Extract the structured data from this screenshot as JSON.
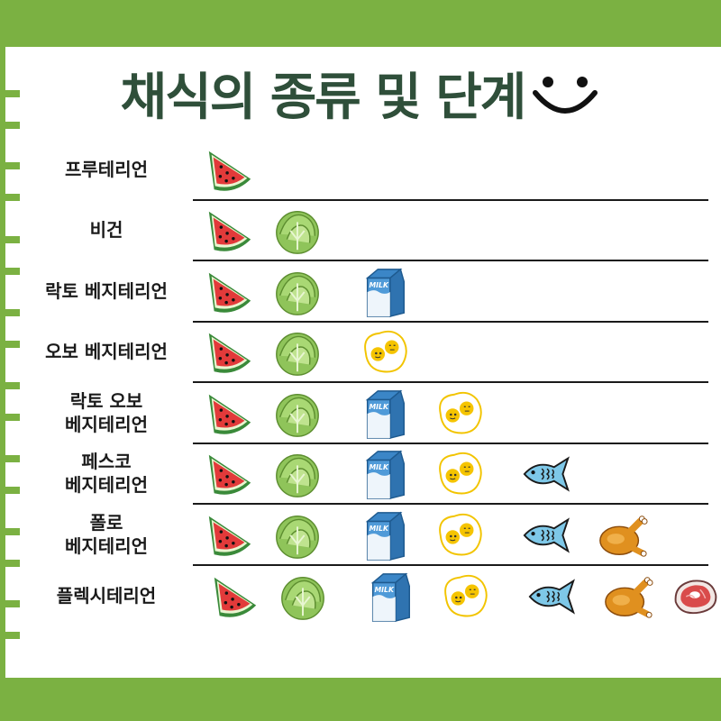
{
  "title": "채식의 종류 및 단계",
  "icons": {
    "watermelon": "watermelon-icon",
    "cabbage": "cabbage-icon",
    "milk": "milk-carton-icon",
    "egg": "fried-egg-icon",
    "fish": "fish-icon",
    "chicken": "roast-chicken-icon",
    "meat": "steak-icon",
    "smile": "smile-icon"
  },
  "milk_label": "MILK",
  "colors": {
    "accent": "#7bb142",
    "title": "#2f4f3a"
  },
  "rows": [
    {
      "label": "프루테리언",
      "foods": [
        "watermelon"
      ]
    },
    {
      "label": "비건",
      "foods": [
        "watermelon",
        "cabbage"
      ]
    },
    {
      "label": "락토 베지테리언",
      "foods": [
        "watermelon",
        "cabbage",
        "milk"
      ]
    },
    {
      "label": "오보 베지테리언",
      "foods": [
        "watermelon",
        "cabbage",
        "egg"
      ]
    },
    {
      "label": "락토 오보\n베지테리언",
      "foods": [
        "watermelon",
        "cabbage",
        "milk",
        "egg"
      ]
    },
    {
      "label": "페스코\n베지테리언",
      "foods": [
        "watermelon",
        "cabbage",
        "milk",
        "egg",
        "fish"
      ]
    },
    {
      "label": "폴로\n베지테리언",
      "foods": [
        "watermelon",
        "cabbage",
        "milk",
        "egg",
        "fish",
        "chicken"
      ]
    },
    {
      "label": "플렉시테리언",
      "foods": [
        "watermelon",
        "cabbage",
        "milk",
        "egg",
        "fish",
        "chicken",
        "meat"
      ]
    }
  ]
}
